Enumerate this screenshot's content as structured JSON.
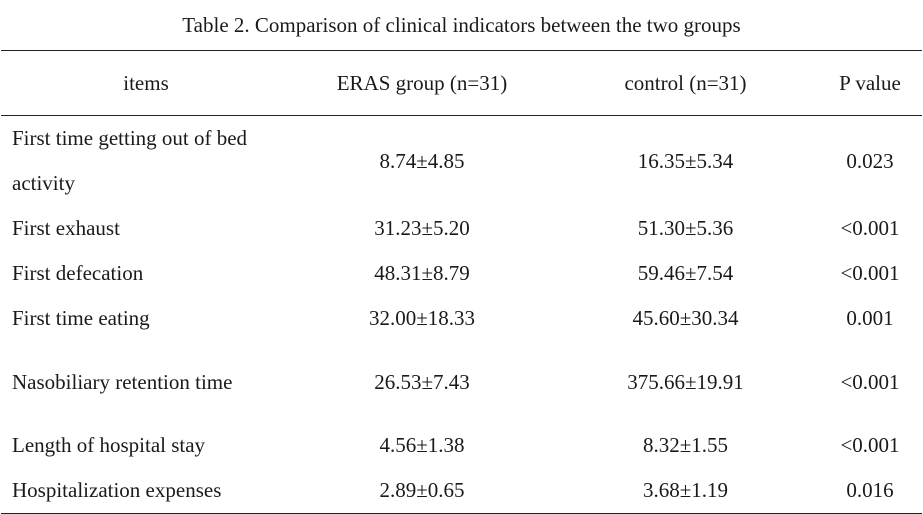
{
  "table": {
    "caption": "Table 2. Comparison of clinical indicators between the two groups",
    "headers": [
      "items",
      "ERAS group (n=31)",
      "control (n=31)",
      "P value"
    ],
    "rows": [
      {
        "item": "First time getting out of bed activity",
        "eras": "8.74±4.85",
        "control": "16.35±5.34",
        "p": "0.023"
      },
      {
        "item": "First exhaust",
        "eras": "31.23±5.20",
        "control": "51.30±5.36",
        "p": "<0.001"
      },
      {
        "item": "First defecation",
        "eras": "48.31±8.79",
        "control": "59.46±7.54",
        "p": "<0.001"
      },
      {
        "item": "First time eating",
        "eras": "32.00±18.33",
        "control": "45.60±30.34",
        "p": "0.001"
      },
      {
        "item": "Nasobiliary retention time",
        "eras": "26.53±7.43",
        "control": "375.66±19.91",
        "p": "<0.001"
      },
      {
        "item": "Length of hospital stay",
        "eras": "4.56±1.38",
        "control": "8.32±1.55",
        "p": "<0.001"
      },
      {
        "item": "Hospitalization expenses",
        "eras": "2.89±0.65",
        "control": "3.68±1.19",
        "p": "0.016"
      }
    ]
  }
}
